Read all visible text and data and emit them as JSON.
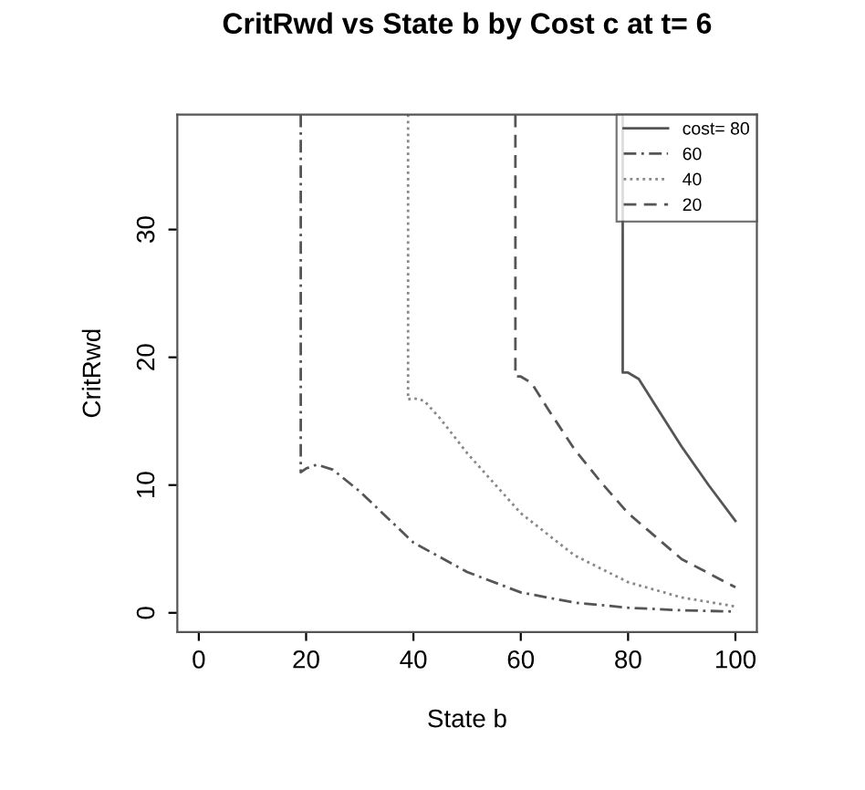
{
  "chart_data": {
    "type": "line",
    "title": "CritRwd vs State b by Cost c at t= 6",
    "xlabel": "State b",
    "ylabel": "CritRwd",
    "xlim": [
      -4,
      104
    ],
    "ylim": [
      -1.5,
      39
    ],
    "xticks": [
      0,
      20,
      40,
      60,
      80,
      100
    ],
    "yticks": [
      0,
      10,
      20,
      30
    ],
    "grid": false,
    "legend": "top right",
    "marker": "none",
    "series": [
      {
        "name": "cost= 80",
        "color": "#555555",
        "line_style": "solid",
        "x": [
          79,
          79,
          80,
          82,
          85,
          90,
          95,
          100
        ],
        "values": [
          39,
          18.8,
          18.8,
          18.3,
          16.3,
          13.0,
          10.0,
          7.2
        ]
      },
      {
        "name": "60",
        "color": "#555555",
        "line_style": "dashdot",
        "x": [
          19,
          19,
          20,
          22,
          25,
          30,
          40,
          50,
          60,
          70,
          80,
          90,
          100
        ],
        "values": [
          39,
          11.0,
          11.3,
          11.6,
          11.2,
          9.5,
          5.5,
          3.2,
          1.6,
          0.8,
          0.4,
          0.2,
          0.1
        ]
      },
      {
        "name": "40",
        "color": "#888888",
        "line_style": "dotted",
        "x": [
          39,
          39,
          40,
          42,
          45,
          50,
          60,
          70,
          80,
          90,
          100
        ],
        "values": [
          39,
          16.7,
          16.8,
          16.6,
          15.2,
          12.5,
          7.8,
          4.5,
          2.4,
          1.2,
          0.5
        ]
      },
      {
        "name": "20",
        "color": "#555555",
        "line_style": "dashed",
        "x": [
          59,
          59,
          60,
          62,
          65,
          70,
          75,
          80,
          90,
          100
        ],
        "values": [
          39,
          18.5,
          18.5,
          18.0,
          16.0,
          12.8,
          10.2,
          7.8,
          4.2,
          2.0
        ]
      }
    ]
  }
}
